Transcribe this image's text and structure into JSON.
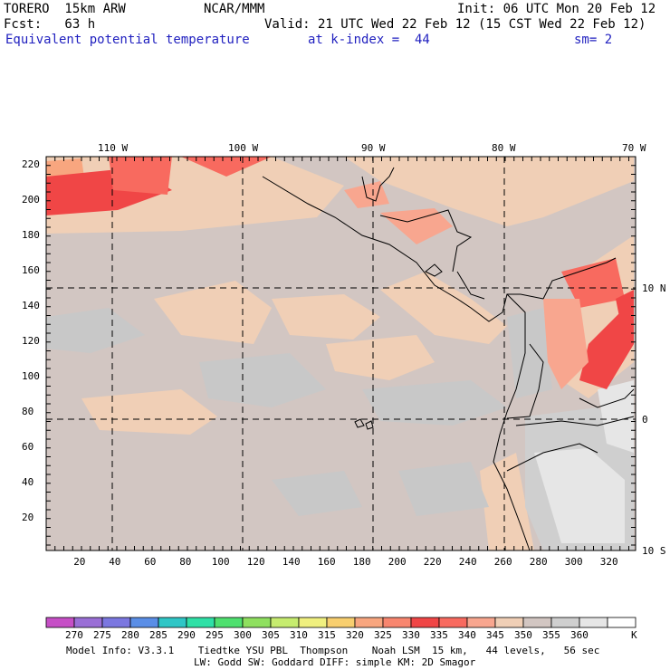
{
  "header": {
    "model": "TORERO  15km ARW",
    "org": "NCAR/MMM",
    "init": "Init: 06 UTC Mon 20 Feb 12",
    "fcst": "Fcst:   63 h",
    "valid": "Valid: 21 UTC Wed 22 Feb 12 (15 CST Wed 22 Feb 12)",
    "field": "Equivalent potential temperature",
    "level": "at k-index =  44",
    "smooth": "sm= 2"
  },
  "map": {
    "lon_labels": [
      "110 W",
      "100 W",
      "90 W",
      "80 W",
      "70 W"
    ],
    "lat_labels": [
      "10 N",
      "0",
      "10 S"
    ],
    "grid_y_labels": [
      "220",
      "200",
      "180",
      "160",
      "140",
      "120",
      "100",
      "80",
      "60",
      "40",
      "20"
    ],
    "grid_x_labels": [
      "20",
      "40",
      "60",
      "80",
      "100",
      "120",
      "140",
      "160",
      "180",
      "200",
      "220",
      "240",
      "260",
      "280",
      "300",
      "320"
    ]
  },
  "colorbar": {
    "levels": [
      "270",
      "275",
      "280",
      "285",
      "290",
      "295",
      "300",
      "305",
      "310",
      "315",
      "320",
      "325",
      "330",
      "335",
      "340",
      "345",
      "350",
      "355",
      "360"
    ],
    "unit": "K",
    "colors": [
      "#c64fc6",
      "#9a6fd6",
      "#7b77e0",
      "#5a8ee6",
      "#2fc6c6",
      "#2fe0a6",
      "#4fe06f",
      "#8fe05f",
      "#c6ec6f",
      "#f0f07f",
      "#f8cf6f",
      "#f8a67f",
      "#f8866f",
      "#f04646",
      "#f86a5f",
      "#f8a68f",
      "#f0cfb6",
      "#d2c6c2",
      "#cfcfcf",
      "#e6e6e6",
      "#ffffff"
    ]
  },
  "footer": {
    "line1": "Model Info: V3.3.1    Tiedtke YSU PBL  Thompson    Noah LSM  15 km,   44 levels,   56 sec",
    "line2": "LW: Godd SW: Goddard DIFF: simple KM: 2D Smagor"
  }
}
